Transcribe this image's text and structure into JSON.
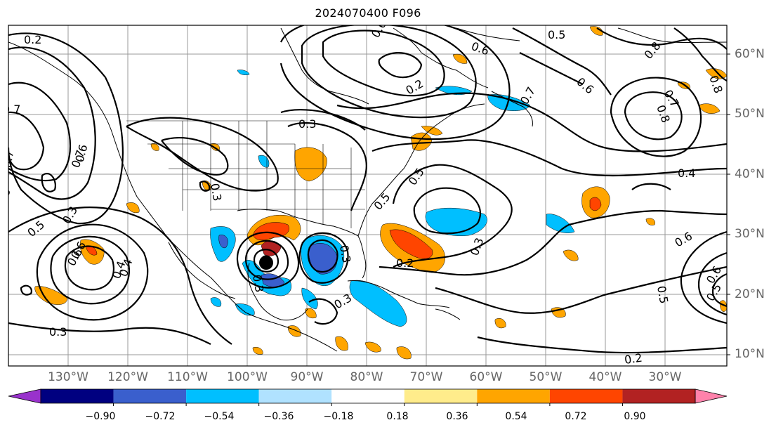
{
  "title": "2024070400 F096",
  "lat_labels": [
    "60°N",
    "50°N",
    "40°N",
    "30°N",
    "20°N",
    "10°N"
  ],
  "lon_labels": [
    "130°W",
    "120°W",
    "110°W",
    "100°W",
    "90°W",
    "80°W",
    "70°W",
    "60°W",
    "50°W",
    "40°W",
    "30°W"
  ],
  "contour_labels": [
    "0.2",
    "0.7",
    "0.6",
    "0.5",
    "0.6",
    "0.8",
    "0.7",
    "0.6",
    "0.5",
    "0.8",
    "0.7",
    "0.8",
    "0.6",
    "0.7",
    "0.2",
    "0.6",
    "0.3",
    "0.3",
    "0.6",
    "0.7",
    "0.4",
    "0.5",
    "0.5",
    "0.4",
    "0.3",
    "0.6",
    "0.5",
    "0.3",
    "0.2",
    "0.6",
    "0.5",
    "0.4",
    "0.3",
    "0.3",
    "0.8",
    "0.3",
    "0.3",
    "0.2"
  ],
  "colorbar": {
    "ticks": [
      "−0.90",
      "−0.72",
      "−0.54",
      "−0.36",
      "−0.18",
      "0.18",
      "0.36",
      "0.54",
      "0.72",
      "0.90"
    ],
    "colors": [
      "#9932cc",
      "#000080",
      "#3a5fcd",
      "#00bfff",
      "#b0e2ff",
      "#ffffff",
      "#ffec8b",
      "#ffa500",
      "#ff4500",
      "#b22222",
      "#ff82ab"
    ]
  },
  "storm_marker_color": "#000000"
}
